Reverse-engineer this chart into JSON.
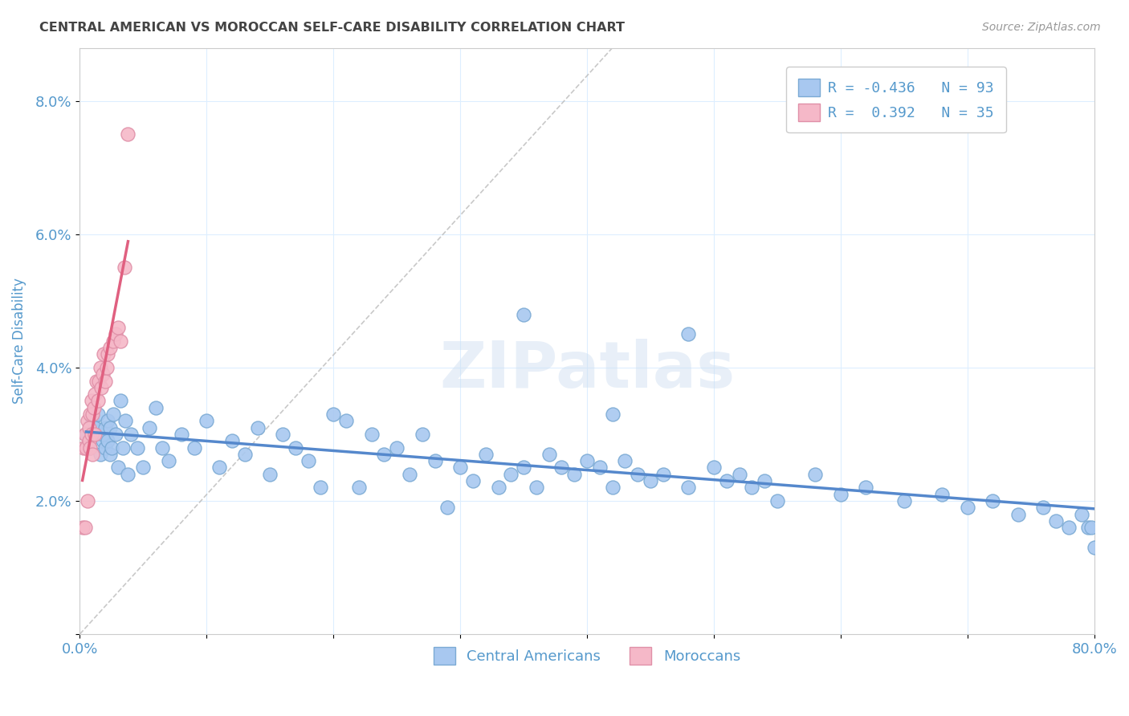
{
  "title": "CENTRAL AMERICAN VS MOROCCAN SELF-CARE DISABILITY CORRELATION CHART",
  "source": "Source: ZipAtlas.com",
  "ylabel": "Self-Care Disability",
  "watermark": "ZIPatlas",
  "xlim": [
    0.0,
    0.8
  ],
  "ylim": [
    0.0,
    0.088
  ],
  "xticks": [
    0.0,
    0.1,
    0.2,
    0.3,
    0.4,
    0.5,
    0.6,
    0.7,
    0.8
  ],
  "xticklabels": [
    "0.0%",
    "",
    "",
    "",
    "",
    "",
    "",
    "",
    "80.0%"
  ],
  "yticks": [
    0.0,
    0.02,
    0.04,
    0.06,
    0.08
  ],
  "yticklabels": [
    "",
    "2.0%",
    "4.0%",
    "6.0%",
    "8.0%"
  ],
  "ca_color": "#a8c8f0",
  "ca_edge_color": "#7baad4",
  "mo_color": "#f5b8c8",
  "mo_edge_color": "#e090a8",
  "ca_R": -0.436,
  "ca_N": 93,
  "mo_R": 0.392,
  "mo_N": 35,
  "legend_label_ca": "Central Americans",
  "legend_label_mo": "Moroccans",
  "ca_line_color": "#5588cc",
  "mo_line_color": "#e06080",
  "ref_line_color": "#bbbbbb",
  "background_color": "#ffffff",
  "grid_color": "#ddeeff",
  "title_color": "#444444",
  "axis_color": "#5599cc",
  "ca_x": [
    0.005,
    0.008,
    0.01,
    0.012,
    0.014,
    0.016,
    0.018,
    0.018,
    0.02,
    0.02,
    0.022,
    0.022,
    0.024,
    0.024,
    0.025,
    0.026,
    0.028,
    0.03,
    0.032,
    0.034,
    0.036,
    0.038,
    0.04,
    0.045,
    0.05,
    0.055,
    0.06,
    0.065,
    0.07,
    0.08,
    0.09,
    0.1,
    0.11,
    0.12,
    0.13,
    0.14,
    0.15,
    0.16,
    0.17,
    0.18,
    0.19,
    0.2,
    0.21,
    0.22,
    0.23,
    0.24,
    0.25,
    0.26,
    0.27,
    0.28,
    0.29,
    0.3,
    0.31,
    0.32,
    0.33,
    0.34,
    0.35,
    0.36,
    0.37,
    0.38,
    0.39,
    0.4,
    0.41,
    0.42,
    0.43,
    0.44,
    0.45,
    0.46,
    0.48,
    0.5,
    0.51,
    0.52,
    0.53,
    0.54,
    0.55,
    0.58,
    0.6,
    0.62,
    0.65,
    0.68,
    0.7,
    0.72,
    0.74,
    0.76,
    0.77,
    0.78,
    0.79,
    0.795,
    0.798,
    0.8,
    0.48,
    0.35,
    0.42
  ],
  "ca_y": [
    0.03,
    0.028,
    0.032,
    0.031,
    0.033,
    0.027,
    0.029,
    0.03,
    0.028,
    0.031,
    0.032,
    0.029,
    0.027,
    0.031,
    0.028,
    0.033,
    0.03,
    0.025,
    0.035,
    0.028,
    0.032,
    0.024,
    0.03,
    0.028,
    0.025,
    0.031,
    0.034,
    0.028,
    0.026,
    0.03,
    0.028,
    0.032,
    0.025,
    0.029,
    0.027,
    0.031,
    0.024,
    0.03,
    0.028,
    0.026,
    0.022,
    0.033,
    0.032,
    0.022,
    0.03,
    0.027,
    0.028,
    0.024,
    0.03,
    0.026,
    0.019,
    0.025,
    0.023,
    0.027,
    0.022,
    0.024,
    0.025,
    0.022,
    0.027,
    0.025,
    0.024,
    0.026,
    0.025,
    0.022,
    0.026,
    0.024,
    0.023,
    0.024,
    0.022,
    0.025,
    0.023,
    0.024,
    0.022,
    0.023,
    0.02,
    0.024,
    0.021,
    0.022,
    0.02,
    0.021,
    0.019,
    0.02,
    0.018,
    0.019,
    0.017,
    0.016,
    0.018,
    0.016,
    0.016,
    0.013,
    0.045,
    0.048,
    0.033
  ],
  "mo_x": [
    0.002,
    0.003,
    0.004,
    0.004,
    0.005,
    0.006,
    0.006,
    0.007,
    0.007,
    0.008,
    0.008,
    0.009,
    0.009,
    0.01,
    0.01,
    0.011,
    0.012,
    0.012,
    0.013,
    0.014,
    0.015,
    0.016,
    0.017,
    0.018,
    0.019,
    0.02,
    0.021,
    0.022,
    0.024,
    0.026,
    0.028,
    0.03,
    0.032,
    0.035,
    0.038
  ],
  "mo_y": [
    0.016,
    0.028,
    0.016,
    0.03,
    0.028,
    0.032,
    0.02,
    0.031,
    0.029,
    0.033,
    0.028,
    0.035,
    0.03,
    0.033,
    0.027,
    0.034,
    0.036,
    0.03,
    0.038,
    0.035,
    0.038,
    0.04,
    0.037,
    0.039,
    0.042,
    0.038,
    0.04,
    0.042,
    0.043,
    0.044,
    0.045,
    0.046,
    0.044,
    0.055,
    0.075
  ]
}
